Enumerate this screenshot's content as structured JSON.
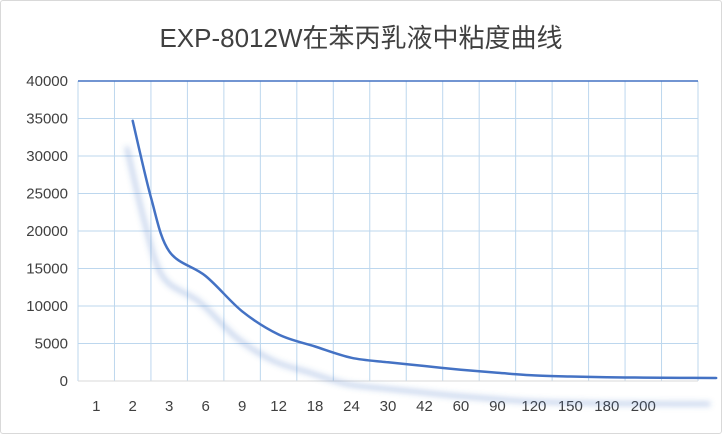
{
  "chart_data": {
    "type": "line",
    "title": "EXP-8012W在苯丙乳液中粘度曲线",
    "xlabel": "",
    "ylabel": "",
    "categories": [
      "1",
      "2",
      "3",
      "6",
      "9",
      "12",
      "18",
      "24",
      "30",
      "42",
      "60",
      "90",
      "120",
      "150",
      "180",
      "200"
    ],
    "ylim": [
      0,
      40000
    ],
    "yticks": [
      0,
      5000,
      10000,
      15000,
      20000,
      25000,
      30000,
      35000,
      40000
    ],
    "grid": true,
    "legend": "none",
    "line_color": "#4472c4",
    "grid_color": "#bdd7ee",
    "series": [
      {
        "name": "粘度",
        "x": [
          2,
          2.5,
          3,
          4,
          5,
          6,
          7,
          8,
          9,
          10,
          11,
          12,
          13,
          14,
          15,
          16,
          17,
          18
        ],
        "values": [
          34700,
          24500,
          17300,
          14000,
          9300,
          6200,
          4600,
          3100,
          2500,
          2000,
          1500,
          1100,
          750,
          600,
          500,
          450,
          420,
          400
        ]
      }
    ]
  }
}
